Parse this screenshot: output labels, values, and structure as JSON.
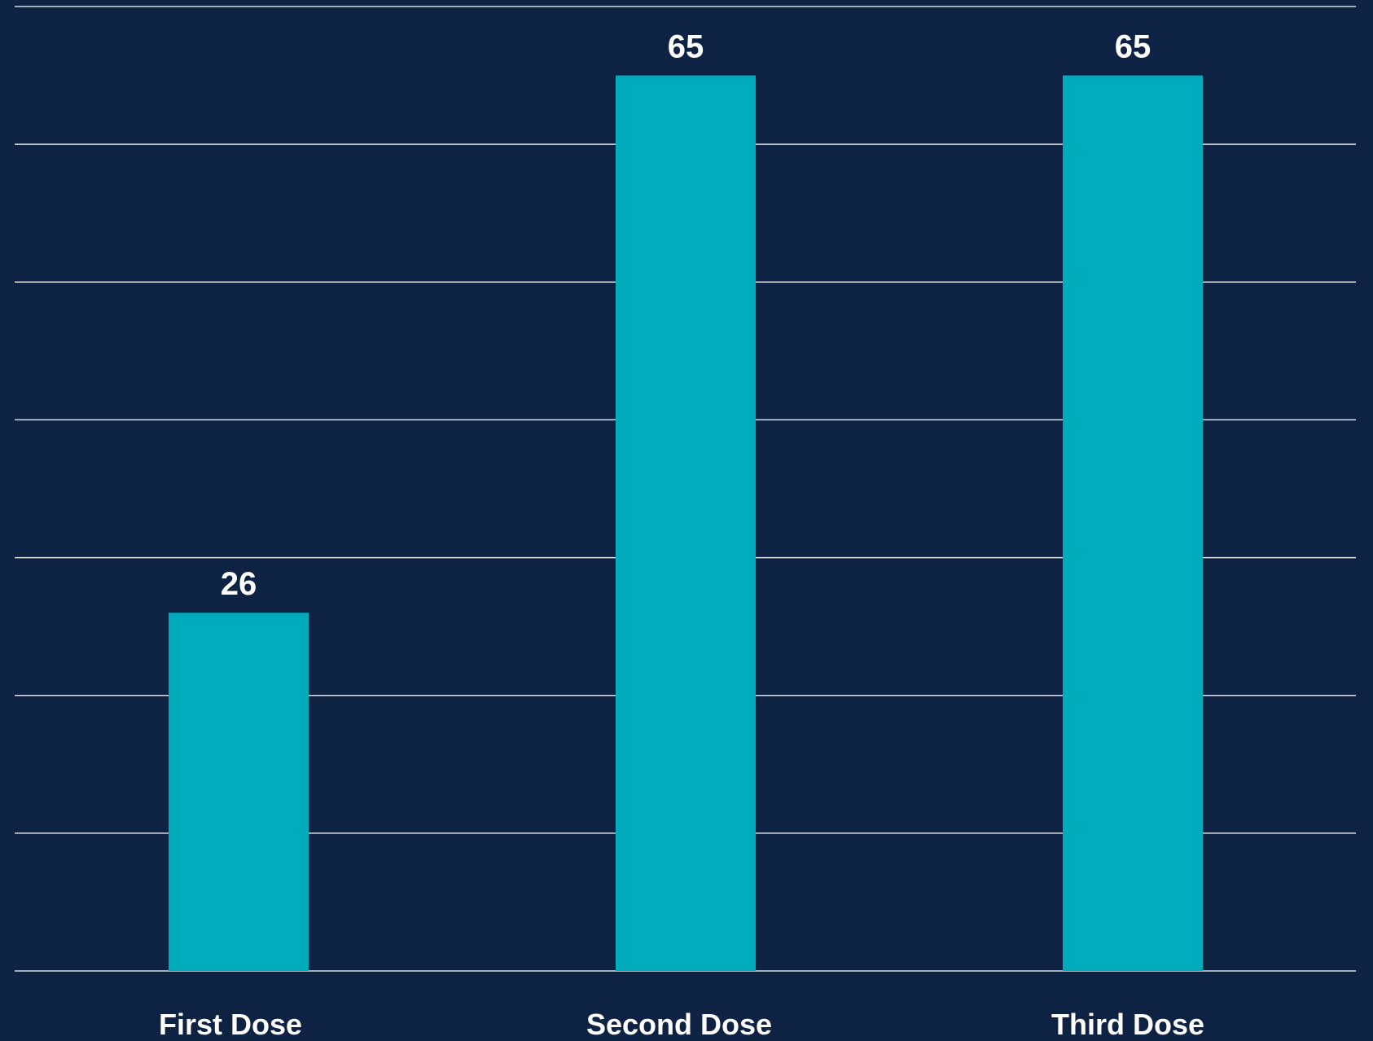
{
  "chart_data": {
    "type": "bar",
    "title": "",
    "xlabel": "",
    "ylabel": "",
    "categories": [
      "First Dose",
      "Second Dose",
      "Third Dose"
    ],
    "values": [
      26,
      65,
      65
    ],
    "data_labels": [
      "26",
      "65",
      "65"
    ],
    "ylim": [
      0,
      70
    ],
    "ytick_step": 10,
    "grid": true,
    "legend": "none",
    "colors": {
      "background": "#0e2243",
      "bar": "#00abbb",
      "grid": "#ffffff",
      "text": "#ffffff"
    }
  }
}
